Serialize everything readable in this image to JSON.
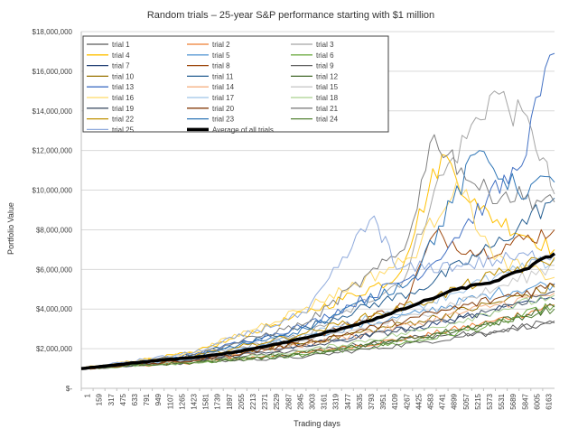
{
  "chart_data": {
    "type": "line",
    "title": "Random trials – 25-year S&P performance starting with $1 million",
    "xlabel": "Trading days",
    "ylabel": "Portfolio Value",
    "ylim": [
      0,
      18000000
    ],
    "yticks": [
      {
        "value": 0,
        "label": "$-"
      },
      {
        "value": 2000000,
        "label": "$2,000,000"
      },
      {
        "value": 4000000,
        "label": "$4,000,000"
      },
      {
        "value": 6000000,
        "label": "$6,000,000"
      },
      {
        "value": 8000000,
        "label": "$8,000,000"
      },
      {
        "value": 10000000,
        "label": "$10,000,000"
      },
      {
        "value": 12000000,
        "label": "$12,000,000"
      },
      {
        "value": 14000000,
        "label": "$14,000,000"
      },
      {
        "value": 16000000,
        "label": "$16,000,000"
      },
      {
        "value": 18000000,
        "label": "$18,000,000"
      }
    ],
    "xlim": [
      1,
      6300
    ],
    "xticks": [
      "1",
      "159",
      "317",
      "475",
      "633",
      "791",
      "949",
      "1107",
      "1265",
      "1423",
      "1581",
      "1739",
      "1897",
      "2055",
      "2213",
      "2371",
      "2529",
      "2687",
      "2845",
      "3003",
      "3161",
      "3319",
      "3477",
      "3635",
      "3793",
      "3951",
      "4109",
      "4267",
      "4425",
      "4583",
      "4741",
      "4899",
      "5057",
      "5215",
      "5373",
      "5531",
      "5689",
      "5847",
      "6005",
      "6163"
    ],
    "grid": true,
    "legend_position": "top-left",
    "series": [
      {
        "name": "trial 1",
        "color": "#595959",
        "points": [
          [
            1,
            1000000
          ],
          [
            1500,
            1400000
          ],
          [
            3000,
            1900000
          ],
          [
            4500,
            2600000
          ],
          [
            5500,
            2800000
          ],
          [
            6300,
            3300000
          ]
        ]
      },
      {
        "name": "trial 2",
        "color": "#ed7d31",
        "points": [
          [
            1,
            1000000
          ],
          [
            1500,
            1300000
          ],
          [
            3000,
            1800000
          ],
          [
            4500,
            2600000
          ],
          [
            5500,
            3400000
          ],
          [
            6300,
            4200000
          ]
        ]
      },
      {
        "name": "trial 3",
        "color": "#a5a5a5",
        "points": [
          [
            1,
            1000000
          ],
          [
            1500,
            1600000
          ],
          [
            3000,
            2700000
          ],
          [
            4300,
            5500000
          ],
          [
            4700,
            10000000
          ],
          [
            5500,
            15000000
          ],
          [
            6000,
            13000000
          ],
          [
            6300,
            9800000
          ]
        ]
      },
      {
        "name": "trial 4",
        "color": "#ffc000",
        "points": [
          [
            1,
            1000000
          ],
          [
            1500,
            1800000
          ],
          [
            3000,
            3800000
          ],
          [
            4200,
            5600000
          ],
          [
            4800,
            11800000
          ],
          [
            5300,
            9000000
          ],
          [
            6300,
            7000000
          ]
        ]
      },
      {
        "name": "trial 5",
        "color": "#5b9bd5",
        "points": [
          [
            1,
            1000000
          ],
          [
            1500,
            1400000
          ],
          [
            3000,
            2600000
          ],
          [
            4500,
            3800000
          ],
          [
            5500,
            4800000
          ],
          [
            6300,
            5300000
          ]
        ]
      },
      {
        "name": "trial 6",
        "color": "#70ad47",
        "points": [
          [
            1,
            1000000
          ],
          [
            1500,
            1300000
          ],
          [
            3000,
            1700000
          ],
          [
            4500,
            2400000
          ],
          [
            5500,
            3200000
          ],
          [
            6300,
            4200000
          ]
        ]
      },
      {
        "name": "trial 7",
        "color": "#264478",
        "points": [
          [
            1,
            1000000
          ],
          [
            1500,
            1500000
          ],
          [
            3000,
            2200000
          ],
          [
            4500,
            3100000
          ],
          [
            5500,
            3900000
          ],
          [
            6300,
            4500000
          ]
        ]
      },
      {
        "name": "trial 8",
        "color": "#9e480e",
        "points": [
          [
            1,
            1000000
          ],
          [
            1500,
            1400000
          ],
          [
            3000,
            2500000
          ],
          [
            4300,
            4200000
          ],
          [
            4700,
            7800000
          ],
          [
            5300,
            6800000
          ],
          [
            6300,
            8000000
          ]
        ]
      },
      {
        "name": "trial 9",
        "color": "#636363",
        "points": [
          [
            1,
            1000000
          ],
          [
            1500,
            1300000
          ],
          [
            3000,
            1600000
          ],
          [
            4500,
            2300000
          ],
          [
            5500,
            2900000
          ],
          [
            6300,
            3400000
          ]
        ]
      },
      {
        "name": "trial 10",
        "color": "#997300",
        "points": [
          [
            1,
            1000000
          ],
          [
            1500,
            1500000
          ],
          [
            3000,
            2300000
          ],
          [
            4500,
            3400000
          ],
          [
            5500,
            4300000
          ],
          [
            6300,
            5100000
          ]
        ]
      },
      {
        "name": "trial 11",
        "color": "#255e91",
        "points": [
          [
            1,
            1000000
          ],
          [
            1500,
            1700000
          ],
          [
            3000,
            3100000
          ],
          [
            4500,
            5000000
          ],
          [
            5500,
            7200000
          ],
          [
            6300,
            9600000
          ]
        ]
      },
      {
        "name": "trial 12",
        "color": "#43682b",
        "points": [
          [
            1,
            1000000
          ],
          [
            1500,
            1300000
          ],
          [
            3000,
            1800000
          ],
          [
            4500,
            2600000
          ],
          [
            5500,
            3300000
          ],
          [
            6300,
            4100000
          ]
        ]
      },
      {
        "name": "trial 13",
        "color": "#4472c4",
        "points": [
          [
            1,
            1000000
          ],
          [
            1500,
            1700000
          ],
          [
            3000,
            3200000
          ],
          [
            4600,
            6000000
          ],
          [
            5400,
            9500000
          ],
          [
            5800,
            11000000
          ],
          [
            6300,
            16900000
          ]
        ]
      },
      {
        "name": "trial 14",
        "color": "#f4b183",
        "points": [
          [
            1,
            1000000
          ],
          [
            1500,
            1400000
          ],
          [
            3000,
            2200000
          ],
          [
            4500,
            3300000
          ],
          [
            5500,
            4200000
          ],
          [
            6300,
            4800000
          ]
        ]
      },
      {
        "name": "trial 15",
        "color": "#c9c9c9",
        "points": [
          [
            1,
            1000000
          ],
          [
            1500,
            1500000
          ],
          [
            3000,
            2400000
          ],
          [
            4500,
            3700000
          ],
          [
            5500,
            5000000
          ],
          [
            6300,
            6200000
          ]
        ]
      },
      {
        "name": "trial 16",
        "color": "#ffd966",
        "points": [
          [
            1,
            1000000
          ],
          [
            1500,
            1800000
          ],
          [
            3000,
            4100000
          ],
          [
            4400,
            6600000
          ],
          [
            5000,
            10500000
          ],
          [
            5500,
            6500000
          ],
          [
            6300,
            5600000
          ]
        ]
      },
      {
        "name": "trial 17",
        "color": "#9dc3e6",
        "points": [
          [
            1,
            1000000
          ],
          [
            1500,
            1500000
          ],
          [
            3000,
            2700000
          ],
          [
            4500,
            4200000
          ],
          [
            5500,
            5600000
          ],
          [
            6300,
            6500000
          ]
        ]
      },
      {
        "name": "trial 18",
        "color": "#a9d18e",
        "points": [
          [
            1,
            1000000
          ],
          [
            1500,
            1300000
          ],
          [
            3000,
            1900000
          ],
          [
            4500,
            2900000
          ],
          [
            5500,
            3900000
          ],
          [
            6300,
            4700000
          ]
        ]
      },
      {
        "name": "trial 19",
        "color": "#44546a",
        "points": [
          [
            1,
            1000000
          ],
          [
            1500,
            1400000
          ],
          [
            3000,
            2100000
          ],
          [
            4500,
            3100000
          ],
          [
            5500,
            4000000
          ],
          [
            6300,
            4900000
          ]
        ]
      },
      {
        "name": "trial 20",
        "color": "#843c0c",
        "points": [
          [
            1,
            1000000
          ],
          [
            1500,
            1400000
          ],
          [
            3000,
            2300000
          ],
          [
            4500,
            3600000
          ],
          [
            5500,
            4500000
          ],
          [
            6300,
            5200000
          ]
        ]
      },
      {
        "name": "trial 21",
        "color": "#7f7f7f",
        "points": [
          [
            1,
            1000000
          ],
          [
            1500,
            1700000
          ],
          [
            3000,
            3300000
          ],
          [
            4300,
            7000000
          ],
          [
            4700,
            12800000
          ],
          [
            5300,
            10000000
          ],
          [
            6300,
            9400000
          ]
        ]
      },
      {
        "name": "trial 22",
        "color": "#bf9000",
        "points": [
          [
            1,
            1000000
          ],
          [
            1500,
            1600000
          ],
          [
            3000,
            2800000
          ],
          [
            4500,
            4300000
          ],
          [
            5500,
            5700000
          ],
          [
            6300,
            6600000
          ]
        ]
      },
      {
        "name": "trial 23",
        "color": "#2e75b6",
        "points": [
          [
            1,
            1000000
          ],
          [
            1500,
            1600000
          ],
          [
            3000,
            3000000
          ],
          [
            4400,
            5500000
          ],
          [
            5300,
            12000000
          ],
          [
            5800,
            10000000
          ],
          [
            6300,
            10400000
          ]
        ]
      },
      {
        "name": "trial 24",
        "color": "#548235",
        "points": [
          [
            1,
            1000000
          ],
          [
            1500,
            1300000
          ],
          [
            3000,
            1700000
          ],
          [
            4500,
            2500000
          ],
          [
            5500,
            3300000
          ],
          [
            6300,
            4000000
          ]
        ]
      },
      {
        "name": "trial 25",
        "color": "#8faadc",
        "points": [
          [
            1,
            1000000
          ],
          [
            1500,
            1800000
          ],
          [
            3000,
            3800000
          ],
          [
            3900,
            8700000
          ],
          [
            4200,
            6000000
          ],
          [
            5000,
            6200000
          ],
          [
            6300,
            6800000
          ]
        ]
      }
    ],
    "average": {
      "name": "Average of all trials",
      "color": "#000000",
      "points": [
        [
          1,
          1000000
        ],
        [
          500,
          1200000
        ],
        [
          1000,
          1400000
        ],
        [
          1500,
          1550000
        ],
        [
          2000,
          1800000
        ],
        [
          2500,
          2150000
        ],
        [
          3000,
          2550000
        ],
        [
          3500,
          3050000
        ],
        [
          4000,
          3600000
        ],
        [
          4500,
          4300000
        ],
        [
          5000,
          5000000
        ],
        [
          5500,
          5400000
        ],
        [
          5900,
          6000000
        ],
        [
          6300,
          6800000
        ]
      ]
    }
  }
}
